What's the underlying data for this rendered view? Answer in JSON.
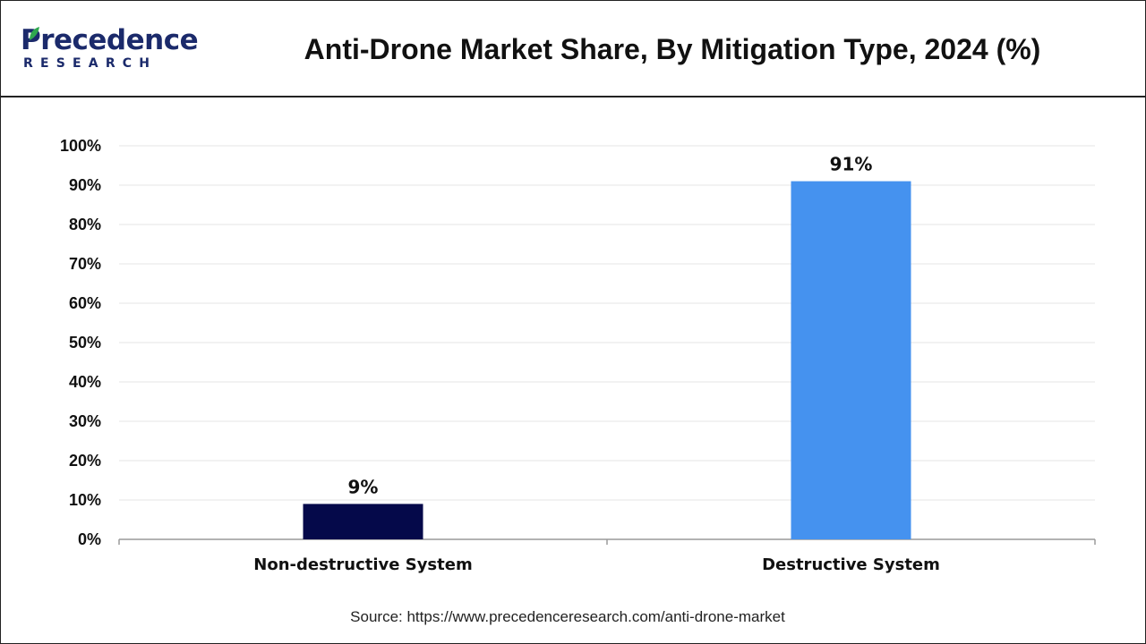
{
  "brand": {
    "name": "Precedence",
    "sub": "RESEARCH",
    "color": "#1b2a6b",
    "leaf_color": "#2fa84f"
  },
  "chart_data": {
    "type": "bar",
    "title": "Anti-Drone Market Share, By Mitigation Type, 2024 (%)",
    "categories": [
      "Non-destructive System",
      "Destructive System"
    ],
    "values": [
      9,
      91
    ],
    "value_labels": [
      "9%",
      "91%"
    ],
    "colors": [
      "#05094a",
      "#4592ef"
    ],
    "ylim": [
      0,
      100
    ],
    "yticks": [
      0,
      10,
      20,
      30,
      40,
      50,
      60,
      70,
      80,
      90,
      100
    ],
    "ytick_labels": [
      "0%",
      "10%",
      "20%",
      "30%",
      "40%",
      "50%",
      "60%",
      "70%",
      "80%",
      "90%",
      "100%"
    ],
    "xlabel": "",
    "ylabel": "",
    "grid": true,
    "legend": "none"
  },
  "source": "Source: https://www.precedenceresearch.com/anti-drone-market"
}
